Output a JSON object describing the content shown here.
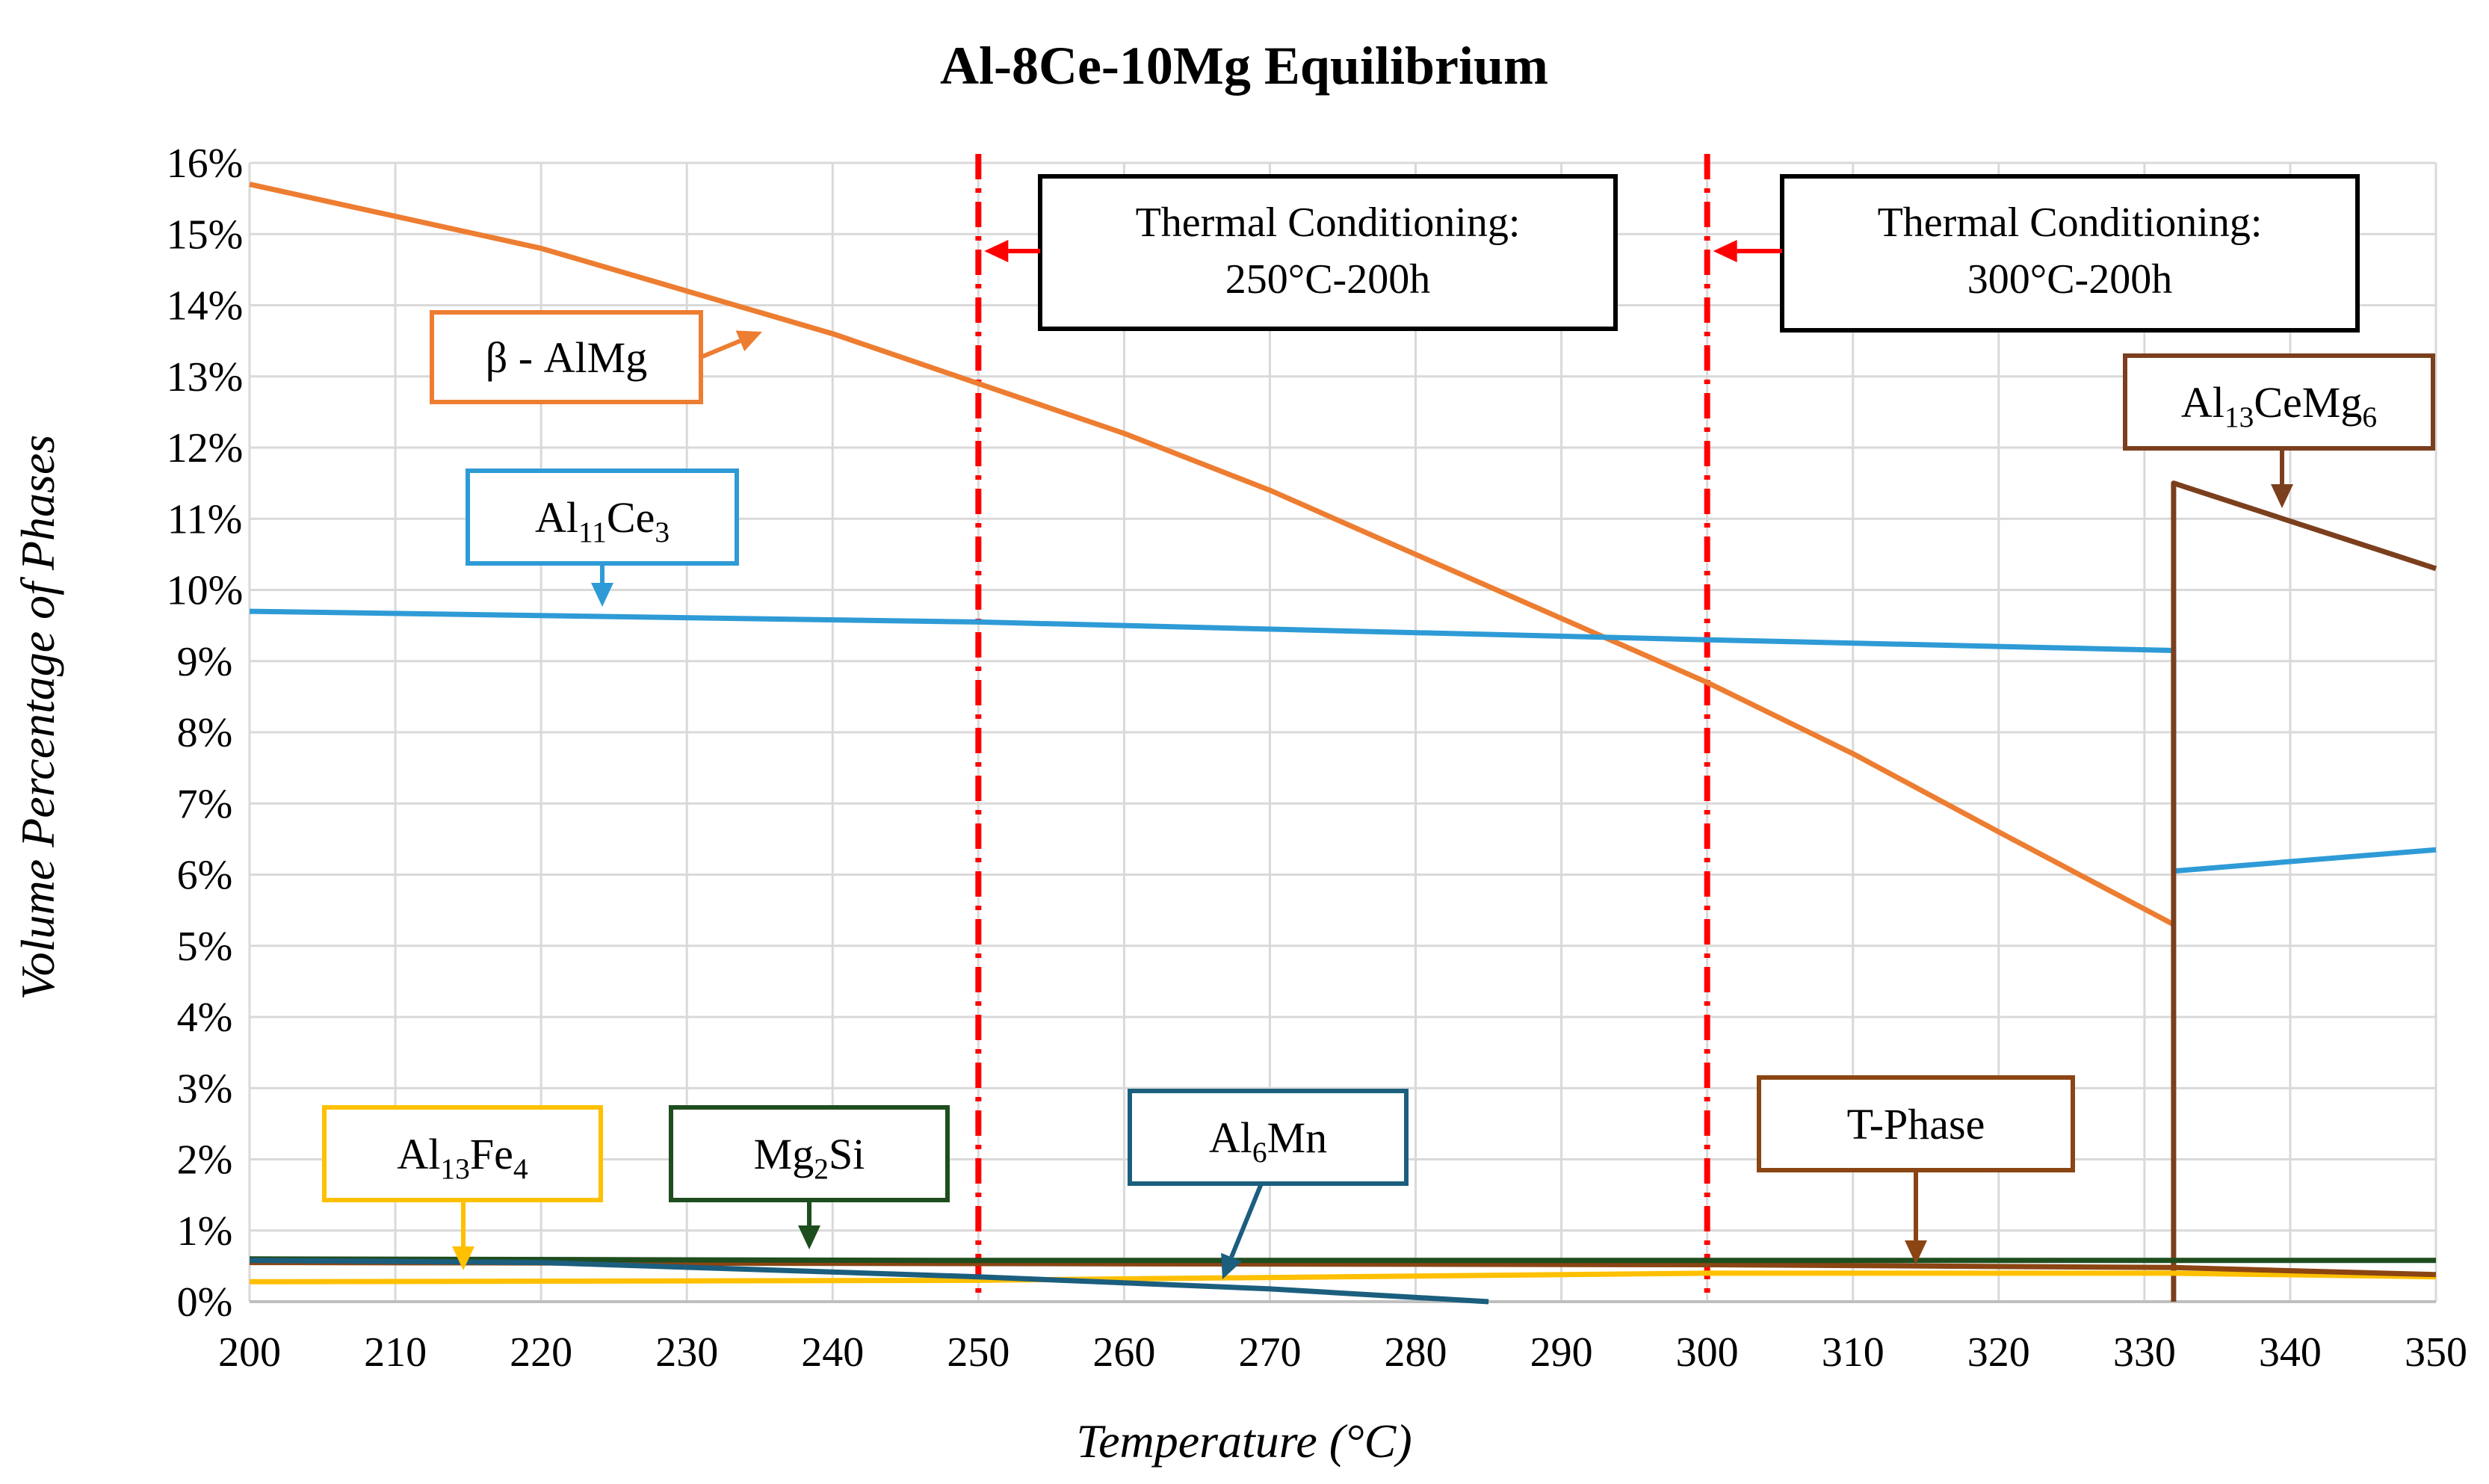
{
  "chart_data": {
    "type": "line",
    "title": "Al-8Ce-10Mg Equilibrium",
    "xlabel": "Temperature (°C)",
    "ylabel": "Volume Percentage of Phases",
    "xlim": [
      200,
      350
    ],
    "ylim": [
      0,
      16
    ],
    "x_ticks": [
      "200",
      "210",
      "220",
      "230",
      "240",
      "250",
      "260",
      "270",
      "280",
      "290",
      "300",
      "310",
      "320",
      "330",
      "340",
      "350"
    ],
    "y_ticks": [
      "0%",
      "1%",
      "2%",
      "3%",
      "4%",
      "5%",
      "6%",
      "7%",
      "8%",
      "9%",
      "10%",
      "11%",
      "12%",
      "13%",
      "14%",
      "15%",
      "16%"
    ],
    "grid": true,
    "series": [
      {
        "name": "β - AlMg",
        "color": "#ED7D31",
        "points": [
          [
            200,
            15.7
          ],
          [
            220,
            14.8
          ],
          [
            230,
            14.2
          ],
          [
            240,
            13.6
          ],
          [
            250,
            12.9
          ],
          [
            260,
            12.2
          ],
          [
            270,
            11.4
          ],
          [
            280,
            10.5
          ],
          [
            290,
            9.6
          ],
          [
            300,
            8.7
          ],
          [
            310,
            7.7
          ],
          [
            320,
            6.6
          ],
          [
            332,
            5.3
          ]
        ]
      },
      {
        "name": "Al11Ce3",
        "color": "#2E9BD6",
        "points": [
          [
            200,
            9.7
          ],
          [
            250,
            9.55
          ],
          [
            300,
            9.3
          ],
          [
            332,
            9.15
          ],
          [
            332,
            6.05
          ],
          [
            350,
            6.35
          ]
        ]
      },
      {
        "name": "Al13CeMg6",
        "color": "#7B3F1E",
        "points": [
          [
            332,
            0
          ],
          [
            332,
            11.5
          ],
          [
            350,
            10.3
          ]
        ]
      },
      {
        "name": "Al6Mn",
        "color": "#1B5E7E",
        "points": [
          [
            200,
            0.58
          ],
          [
            220,
            0.55
          ],
          [
            250,
            0.35
          ],
          [
            270,
            0.18
          ],
          [
            285,
            0.0
          ]
        ]
      },
      {
        "name": "Al13Fe4",
        "color": "#FFC000",
        "points": [
          [
            200,
            0.28
          ],
          [
            250,
            0.3
          ],
          [
            300,
            0.4
          ],
          [
            332,
            0.4
          ],
          [
            350,
            0.35
          ]
        ]
      },
      {
        "name": "T-Phase",
        "color": "#8B4513",
        "points": [
          [
            200,
            0.55
          ],
          [
            300,
            0.52
          ],
          [
            332,
            0.48
          ],
          [
            350,
            0.38
          ]
        ]
      },
      {
        "name": "Mg2Si",
        "color": "#1E4D1E",
        "points": [
          [
            200,
            0.6
          ],
          [
            250,
            0.58
          ],
          [
            300,
            0.58
          ],
          [
            332,
            0.58
          ],
          [
            350,
            0.58
          ]
        ]
      }
    ],
    "vlines": [
      {
        "x": 250,
        "color": "#FF0000",
        "style": "dash-dot"
      },
      {
        "x": 300,
        "color": "#FF0000",
        "style": "dash-dot"
      }
    ],
    "annotations": [
      {
        "id": "tc250",
        "line1": "Thermal Conditioning:",
        "line2": "250°C-200h",
        "border": "#000000",
        "arrow_color": "#FF0000"
      },
      {
        "id": "tc300",
        "line1": "Thermal Conditioning:",
        "line2": "300°C-200h",
        "border": "#000000",
        "arrow_color": "#FF0000"
      },
      {
        "id": "beta",
        "text": "β - AlMg",
        "border": "#ED7D31"
      },
      {
        "id": "al11ce3",
        "parts": [
          [
            "Al",
            ""
          ],
          [
            "11",
            "sub"
          ],
          [
            "Ce",
            ""
          ],
          [
            "3",
            "sub"
          ]
        ],
        "border": "#2E9BD6"
      },
      {
        "id": "al13cemg6",
        "parts": [
          [
            "Al",
            ""
          ],
          [
            "13",
            "sub"
          ],
          [
            "CeMg",
            ""
          ],
          [
            "6",
            "sub"
          ]
        ],
        "border": "#7B3F1E"
      },
      {
        "id": "al13fe4",
        "parts": [
          [
            "Al",
            ""
          ],
          [
            "13",
            "sub"
          ],
          [
            "Fe",
            ""
          ],
          [
            "4",
            "sub"
          ]
        ],
        "border": "#FFC000"
      },
      {
        "id": "mg2si",
        "parts": [
          [
            "Mg",
            ""
          ],
          [
            "2",
            "sub"
          ],
          [
            "Si",
            ""
          ]
        ],
        "border": "#1E4D1E"
      },
      {
        "id": "al6mn",
        "parts": [
          [
            "Al",
            ""
          ],
          [
            "6",
            "sub"
          ],
          [
            "Mn",
            ""
          ]
        ],
        "border": "#1B5E7E"
      },
      {
        "id": "tphase",
        "text": "T-Phase",
        "border": "#8B4513"
      }
    ]
  }
}
